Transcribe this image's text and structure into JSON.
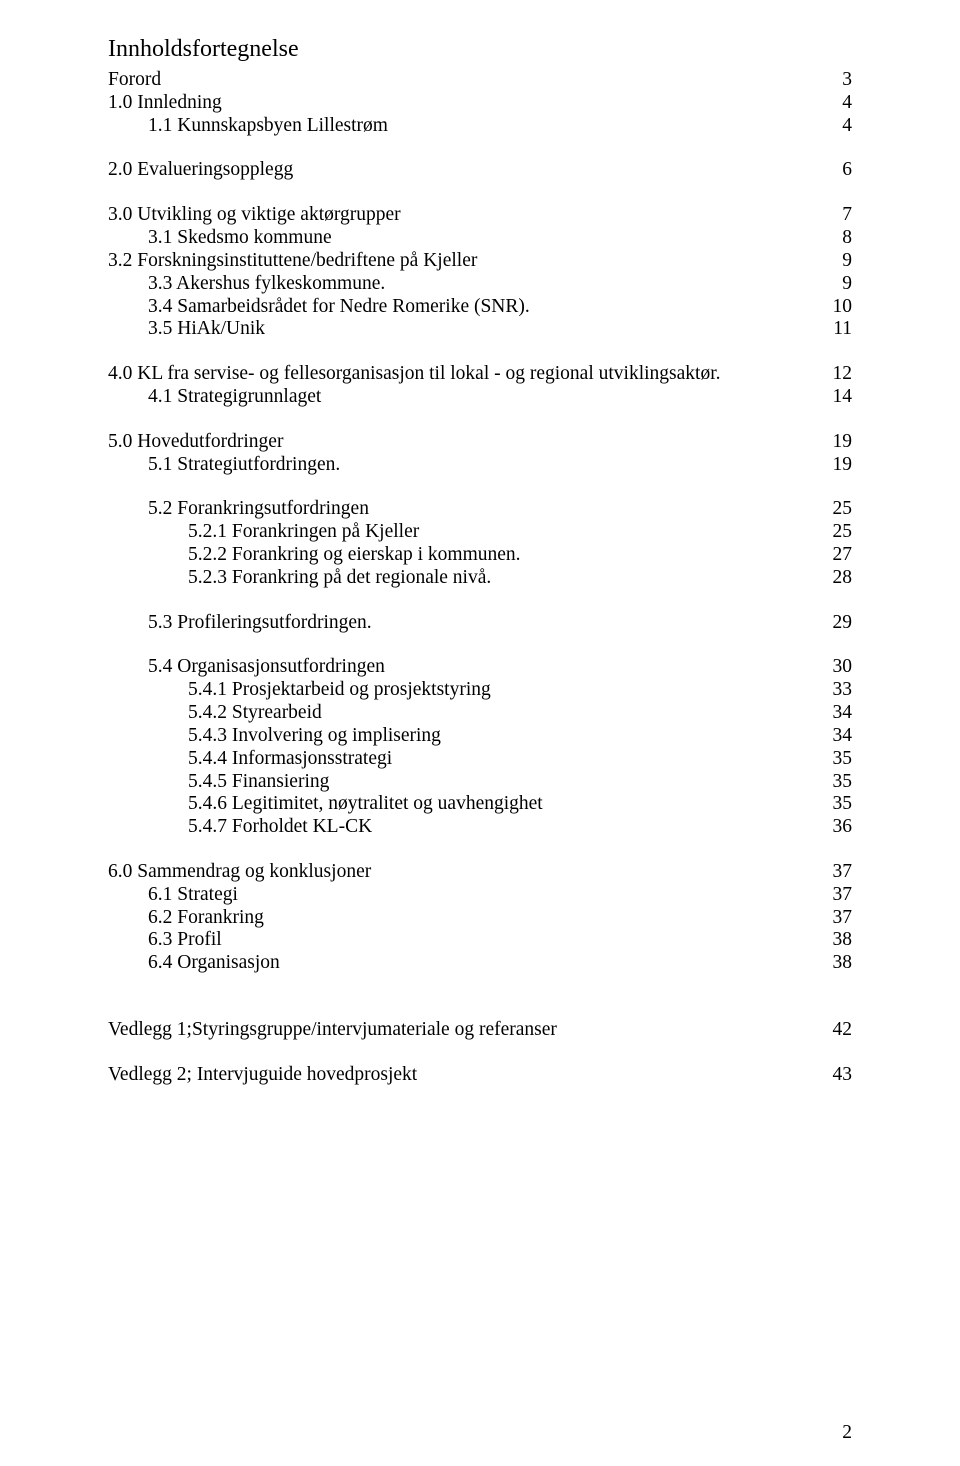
{
  "title": "Innholdsfortegnelse",
  "page_number": "2",
  "entries": [
    {
      "label": "Forord",
      "page": "3",
      "level": 0,
      "spacer_after": false
    },
    {
      "label": "1.0 Innledning",
      "page": "4",
      "level": 0,
      "spacer_after": false
    },
    {
      "label": "1.1 Kunnskapsbyen Lillestrøm",
      "page": "4",
      "level": 1,
      "spacer_after": true
    },
    {
      "label": "2.0 Evalueringsopplegg",
      "page": "6",
      "level": 0,
      "spacer_after": true
    },
    {
      "label": "3.0 Utvikling og viktige aktørgrupper",
      "page": "7",
      "level": 0,
      "spacer_after": false
    },
    {
      "label": "3.1 Skedsmo kommune",
      "page": "8",
      "level": 1,
      "spacer_after": false
    },
    {
      "label": "3.2 Forskningsinstituttene/bedriftene på Kjeller",
      "page": "9",
      "level": 0,
      "spacer_after": false
    },
    {
      "label": "3.3 Akershus fylkeskommune.",
      "page": "9",
      "level": 1,
      "spacer_after": false
    },
    {
      "label": "3.4 Samarbeidsrådet for Nedre Romerike (SNR).",
      "page": "10",
      "level": 1,
      "spacer_after": false
    },
    {
      "label": "3.5 HiAk/Unik",
      "page": "11",
      "level": 1,
      "spacer_after": true
    },
    {
      "label": "4.0 KL fra servise- og fellesorganisasjon til lokal - og regional utviklingsaktør.",
      "page": "12",
      "level": 0,
      "spacer_after": false
    },
    {
      "label": "4.1 Strategigrunnlaget",
      "page": "14",
      "level": 1,
      "spacer_after": true
    },
    {
      "label": "5.0 Hovedutfordringer",
      "page": "19",
      "level": 0,
      "spacer_after": false
    },
    {
      "label": "5.1 Strategiutfordringen.",
      "page": "19",
      "level": 1,
      "spacer_after": true
    },
    {
      "label": "5.2 Forankringsutfordringen",
      "page": "25",
      "level": 1,
      "spacer_after": false
    },
    {
      "label": "5.2.1 Forankringen på Kjeller",
      "page": "25",
      "level": 2,
      "spacer_after": false
    },
    {
      "label": "5.2.2 Forankring og eierskap i kommunen.",
      "page": "27",
      "level": 2,
      "spacer_after": false
    },
    {
      "label": "5.2.3 Forankring på det regionale nivå.",
      "page": "28",
      "level": 2,
      "spacer_after": true
    },
    {
      "label": "5.3 Profileringsutfordringen.",
      "page": "29",
      "level": 1,
      "spacer_after": true
    },
    {
      "label": "5.4 Organisasjonsutfordringen",
      "page": "30",
      "level": 1,
      "spacer_after": false
    },
    {
      "label": "5.4.1 Prosjektarbeid og prosjektstyring",
      "page": "33",
      "level": 2,
      "spacer_after": false
    },
    {
      "label": "5.4.2 Styrearbeid",
      "page": "34",
      "level": 2,
      "spacer_after": false
    },
    {
      "label": "5.4.3 Involvering og implisering",
      "page": "34",
      "level": 2,
      "spacer_after": false
    },
    {
      "label": "5.4.4 Informasjonsstrategi",
      "page": "35",
      "level": 2,
      "spacer_after": false
    },
    {
      "label": "5.4.5 Finansiering",
      "page": "35",
      "level": 2,
      "spacer_after": false
    },
    {
      "label": "5.4.6 Legitimitet, nøytralitet og uavhengighet",
      "page": "35",
      "level": 2,
      "spacer_after": false
    },
    {
      "label": "5.4.7 Forholdet KL-CK",
      "page": "36",
      "level": 2,
      "spacer_after": true
    },
    {
      "label": "6.0 Sammendrag og konklusjoner",
      "page": "37",
      "level": 0,
      "spacer_after": false
    },
    {
      "label": "6.1 Strategi",
      "page": "37",
      "level": 1,
      "spacer_after": false
    },
    {
      "label": "6.2 Forankring",
      "page": "37",
      "level": 1,
      "spacer_after": false
    },
    {
      "label": "6.3 Profil",
      "page": "38",
      "level": 1,
      "spacer_after": false
    },
    {
      "label": "6.4 Organisasjon",
      "page": "38",
      "level": 1,
      "spacer_after": true
    },
    {
      "label": "",
      "page": "",
      "level": 0,
      "spacer_after": false,
      "blank": true
    },
    {
      "label": "Vedlegg 1;Styringsgruppe/intervjumateriale og referanser",
      "page": "42",
      "level": 0,
      "spacer_after": true
    },
    {
      "label": "Vedlegg 2; Intervjuguide hovedprosjekt",
      "page": "43",
      "level": 0,
      "spacer_after": false
    }
  ]
}
